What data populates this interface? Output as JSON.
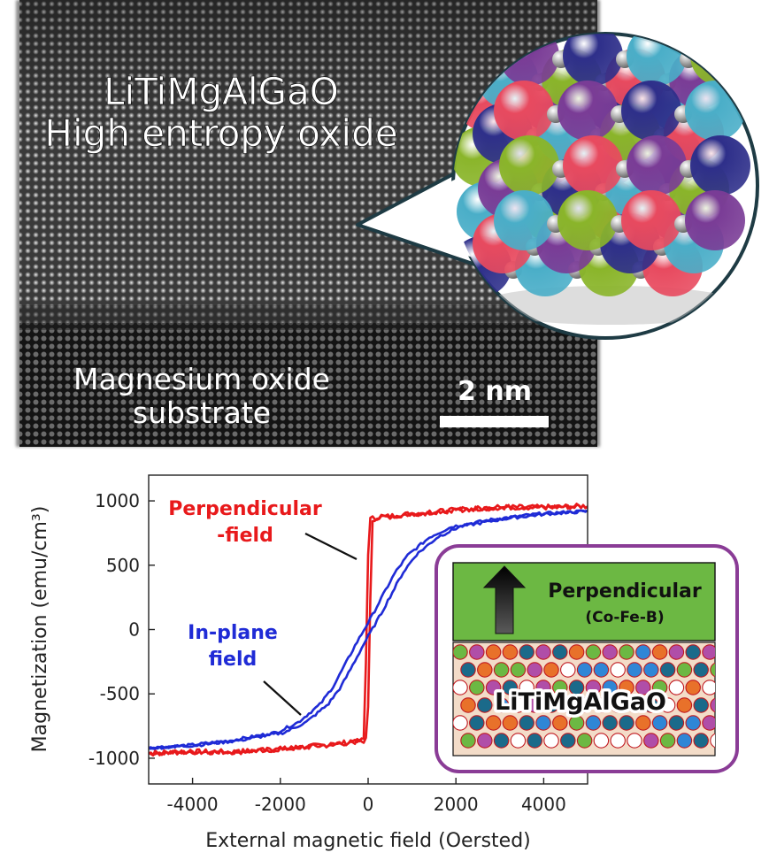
{
  "micrograph": {
    "title_line1": "LiTiMgAlGaO",
    "title_line2": "High entropy oxide",
    "substrate_line1": "Magnesium oxide",
    "substrate_line2": "substrate",
    "scale_bar_label": "2 nm"
  },
  "crystal_colors": [
    "#e84a5f",
    "#4aaec8",
    "#7a3c96",
    "#8ab52a",
    "#2e2f8a"
  ],
  "inset": {
    "top_layer_label": "Perpendicular",
    "top_layer_sublabel": "(Co-Fe-B)",
    "bottom_layer_label": "LiTiMgAlGaO",
    "top_layer_color": "#6cb843",
    "frame_color": "#8a3c96"
  },
  "chart_data": {
    "type": "line",
    "xlabel": "External magnetic field (Oersted)",
    "ylabel": "Magnetization (emu/cm³)",
    "xlim": [
      -5000,
      5000
    ],
    "ylim": [
      -1200,
      1200
    ],
    "xticks": [
      -4000,
      -2000,
      0,
      2000,
      4000
    ],
    "yticks": [
      1000,
      500,
      0,
      -500,
      -1000
    ],
    "xtick_labels": [
      "-4000",
      "-2000",
      "0",
      "2000",
      "4000"
    ],
    "ytick_labels": [
      "1000",
      "500",
      "0",
      "-500",
      "-1000"
    ],
    "series": [
      {
        "name": "Perpendicular -field",
        "label_lines": [
          "Perpendicular",
          "-field"
        ],
        "color": "#e8191b",
        "x": [
          -5000,
          -4000,
          -3000,
          -2000,
          -1000,
          -500,
          -200,
          -100,
          -50,
          50,
          100,
          200,
          500,
          1000,
          2000,
          3000,
          4000,
          5000
        ],
        "y": [
          -960,
          -950,
          -950,
          -930,
          -900,
          -880,
          -870,
          -860,
          -850,
          850,
          860,
          870,
          880,
          900,
          930,
          950,
          950,
          960
        ]
      },
      {
        "name": "In-plane field",
        "label_lines": [
          "In-plane",
          "field"
        ],
        "color": "#1f2bd6",
        "x": [
          -5000,
          -4000,
          -3000,
          -2000,
          -1500,
          -1000,
          -700,
          -400,
          -200,
          0,
          200,
          400,
          700,
          1000,
          1500,
          2000,
          3000,
          4000,
          5000
        ],
        "y": [
          -920,
          -900,
          -860,
          -800,
          -720,
          -580,
          -440,
          -250,
          -120,
          0,
          120,
          250,
          440,
          580,
          720,
          800,
          860,
          900,
          920
        ]
      }
    ]
  }
}
